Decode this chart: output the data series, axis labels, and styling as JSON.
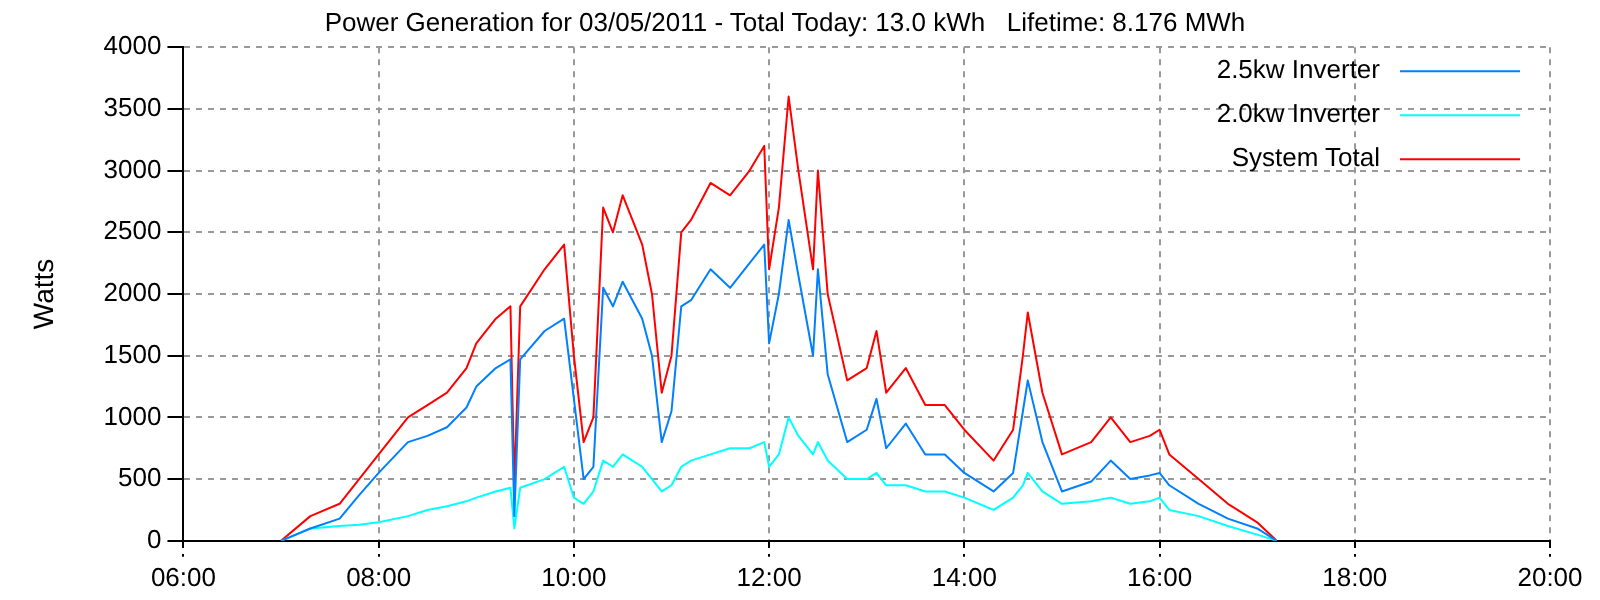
{
  "chart_data": {
    "type": "line",
    "title": "Power Generation for 03/05/2011 - Total Today: 13.0 kWh   Lifetime: 8.176 MWh",
    "ylabel": "Watts",
    "x": [
      7.0,
      7.3,
      7.6,
      7.8,
      8.0,
      8.3,
      8.5,
      8.7,
      8.9,
      9.0,
      9.2,
      9.35,
      9.39,
      9.45,
      9.7,
      9.9,
      10.0,
      10.1,
      10.2,
      10.3,
      10.4,
      10.5,
      10.6,
      10.7,
      10.8,
      10.9,
      11.0,
      11.1,
      11.2,
      11.4,
      11.6,
      11.8,
      11.95,
      12.0,
      12.1,
      12.2,
      12.3,
      12.45,
      12.5,
      12.6,
      12.8,
      13.0,
      13.1,
      13.2,
      13.4,
      13.6,
      13.8,
      14.0,
      14.3,
      14.5,
      14.6,
      14.65,
      14.8,
      15.0,
      15.3,
      15.5,
      15.7,
      15.9,
      16.0,
      16.1,
      16.4,
      16.7,
      17.0,
      17.2
    ],
    "series": [
      {
        "name": "2.5kw Inverter",
        "color": "#0080ff",
        "values": [
          0,
          100,
          180,
          370,
          550,
          800,
          850,
          920,
          1080,
          1250,
          1400,
          1470,
          200,
          1470,
          1700,
          1800,
          1150,
          500,
          600,
          2050,
          1900,
          2100,
          1950,
          1800,
          1500,
          800,
          1050,
          1900,
          1950,
          2200,
          2050,
          2250,
          2400,
          1600,
          2000,
          2600,
          2150,
          1500,
          2200,
          1350,
          800,
          900,
          1150,
          750,
          950,
          700,
          700,
          550,
          400,
          550,
          1050,
          1300,
          800,
          400,
          480,
          650,
          500,
          530,
          550,
          450,
          300,
          180,
          100,
          0
        ]
      },
      {
        "name": "2.0kw Inverter",
        "color": "#00ffff",
        "values": [
          0,
          100,
          120,
          130,
          150,
          200,
          250,
          280,
          320,
          350,
          400,
          430,
          100,
          430,
          500,
          600,
          350,
          300,
          400,
          650,
          600,
          700,
          650,
          600,
          500,
          400,
          450,
          600,
          650,
          700,
          750,
          750,
          800,
          600,
          700,
          1000,
          850,
          700,
          800,
          650,
          500,
          500,
          550,
          450,
          450,
          400,
          400,
          350,
          250,
          350,
          450,
          550,
          400,
          300,
          320,
          350,
          300,
          320,
          350,
          250,
          200,
          120,
          50,
          0
        ]
      },
      {
        "name": "System Total",
        "color": "#ff0000",
        "values": [
          0,
          200,
          300,
          500,
          700,
          1000,
          1100,
          1200,
          1400,
          1600,
          1800,
          1900,
          450,
          1900,
          2200,
          2400,
          1500,
          800,
          1000,
          2700,
          2500,
          2800,
          2600,
          2400,
          2000,
          1200,
          1500,
          2500,
          2600,
          2900,
          2800,
          3000,
          3200,
          2200,
          2700,
          3600,
          3000,
          2200,
          3000,
          2000,
          1300,
          1400,
          1700,
          1200,
          1400,
          1100,
          1100,
          900,
          650,
          900,
          1500,
          1850,
          1200,
          700,
          800,
          1000,
          800,
          850,
          900,
          700,
          500,
          300,
          150,
          0
        ]
      }
    ],
    "xlim": [
      6,
      20
    ],
    "xticks": [
      {
        "value": 6,
        "label": "06:00"
      },
      {
        "value": 8,
        "label": "08:00"
      },
      {
        "value": 10,
        "label": "10:00"
      },
      {
        "value": 12,
        "label": "12:00"
      },
      {
        "value": 14,
        "label": "14:00"
      },
      {
        "value": 16,
        "label": "16:00"
      },
      {
        "value": 18,
        "label": "18:00"
      },
      {
        "value": 20,
        "label": "20:00"
      }
    ],
    "ylim": [
      0,
      4000
    ],
    "yticks": [
      0,
      500,
      1000,
      1500,
      2000,
      2500,
      3000,
      3500,
      4000
    ],
    "grid": true,
    "legend": "top right",
    "marker": "none",
    "line_style": "solid"
  }
}
